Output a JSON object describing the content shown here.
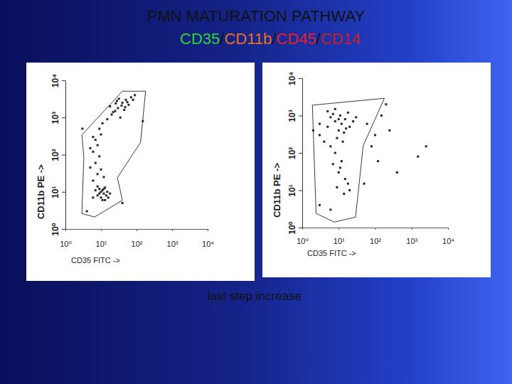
{
  "title": "PMN MATURATION PATHWAY",
  "subtitle": {
    "parts": [
      "CD35",
      "/",
      "CD11b",
      "/",
      "CD45",
      "/",
      "CD14"
    ],
    "colors": [
      "#2fcf3a",
      "#111111",
      "#e8701c",
      "#111111",
      "#e02222",
      "#111111",
      "#c81e1e"
    ]
  },
  "annotation": "last step increase",
  "chart_data": [
    {
      "type": "scatter",
      "xlabel": "CD35 FITC ->",
      "ylabel": "CD11b PE ->",
      "log": true,
      "color": "#2b2424",
      "marker": "square",
      "xlim": [
        1,
        10000
      ],
      "ylim": [
        1,
        10000
      ],
      "xticks": [
        {
          "value": 1,
          "label": "10⁰"
        },
        {
          "value": 10,
          "label": "10¹"
        },
        {
          "value": 100,
          "label": "10²"
        },
        {
          "value": 1000,
          "label": "10³"
        },
        {
          "value": 10000,
          "label": "10⁴"
        }
      ],
      "yticks": [
        {
          "value": 1,
          "label": "10⁰"
        },
        {
          "value": 10,
          "label": "10¹"
        },
        {
          "value": 100,
          "label": "10²"
        },
        {
          "value": 1000,
          "label": "10³"
        },
        {
          "value": 10000,
          "label": "10⁴"
        }
      ],
      "x": [
        8,
        10,
        12,
        9,
        14,
        11,
        7,
        13,
        10,
        15,
        9,
        12,
        16,
        8,
        11,
        18,
        6,
        13,
        6,
        8,
        5,
        7,
        9,
        6,
        8,
        7,
        10,
        9,
        11,
        5,
        12,
        10,
        6,
        15,
        20,
        25,
        30,
        18,
        40,
        50,
        35,
        60,
        28,
        45,
        70,
        22,
        38,
        55,
        80,
        32,
        26,
        90,
        48,
        3,
        150,
        40,
        4
      ],
      "values": [
        8,
        10,
        9,
        12,
        8,
        6,
        11,
        13,
        7,
        10,
        9,
        12,
        7,
        14,
        11,
        9,
        7,
        6,
        20,
        30,
        45,
        60,
        90,
        120,
        180,
        250,
        350,
        500,
        700,
        150,
        25,
        40,
        300,
        900,
        1200,
        1500,
        1800,
        2000,
        2500,
        3000,
        1000,
        2200,
        2800,
        1600,
        3500,
        1400,
        2100,
        2600,
        3000,
        3200,
        2400,
        4000,
        1900,
        500,
        800,
        5,
        3
      ],
      "gate": {
        "x": [
          2.9,
          3.3,
          2.9,
          40,
          180,
          130,
          29,
          40,
          6.6
        ],
        "y": [
          2.6,
          90,
          340,
          5100,
          5100,
          215,
          24,
          5.9,
          2.1
        ]
      }
    },
    {
      "type": "scatter",
      "xlabel": "CD35 FITC ->",
      "ylabel": "CD11b PE ->",
      "log": true,
      "color": "#2b2424",
      "marker": "square",
      "xlim": [
        1,
        10000
      ],
      "ylim": [
        1,
        10000
      ],
      "xticks": [
        {
          "value": 1,
          "label": "10⁰"
        },
        {
          "value": 10,
          "label": "10¹"
        },
        {
          "value": 100,
          "label": "10²"
        },
        {
          "value": 1000,
          "label": "10³"
        },
        {
          "value": 10000,
          "label": "10⁴"
        }
      ],
      "yticks": [
        {
          "value": 1,
          "label": "10⁰"
        },
        {
          "value": 10,
          "label": "10¹"
        },
        {
          "value": 100,
          "label": "10²"
        },
        {
          "value": 1000,
          "label": "10³"
        },
        {
          "value": 10000,
          "label": "10⁴"
        }
      ],
      "x": [
        3,
        5,
        8,
        10,
        6,
        12,
        4,
        15,
        7,
        9,
        20,
        5,
        11,
        14,
        3,
        25,
        8,
        18,
        6,
        10,
        2,
        30,
        13,
        16,
        8,
        12,
        10,
        15,
        9,
        14,
        18,
        11,
        20,
        7,
        60,
        100,
        150,
        250,
        80,
        200,
        2500,
        1500,
        400,
        120,
        50,
        3,
        6
      ],
      "values": [
        300,
        500,
        700,
        400,
        900,
        600,
        200,
        800,
        1100,
        250,
        500,
        1300,
        1000,
        350,
        600,
        700,
        1500,
        1200,
        150,
        800,
        400,
        900,
        200,
        450,
        100,
        60,
        30,
        20,
        12,
        8,
        15,
        40,
        10,
        50,
        600,
        300,
        1000,
        400,
        150,
        2000,
        150,
        80,
        30,
        60,
        15,
        4,
        3
      ],
      "gate": {
        "x": [
          2.4,
          1.9,
          180,
          47,
          37,
          29,
          7.6
        ],
        "y": [
          2.4,
          1900,
          2900,
          155,
          17,
          1.9,
          1.4
        ]
      }
    }
  ]
}
